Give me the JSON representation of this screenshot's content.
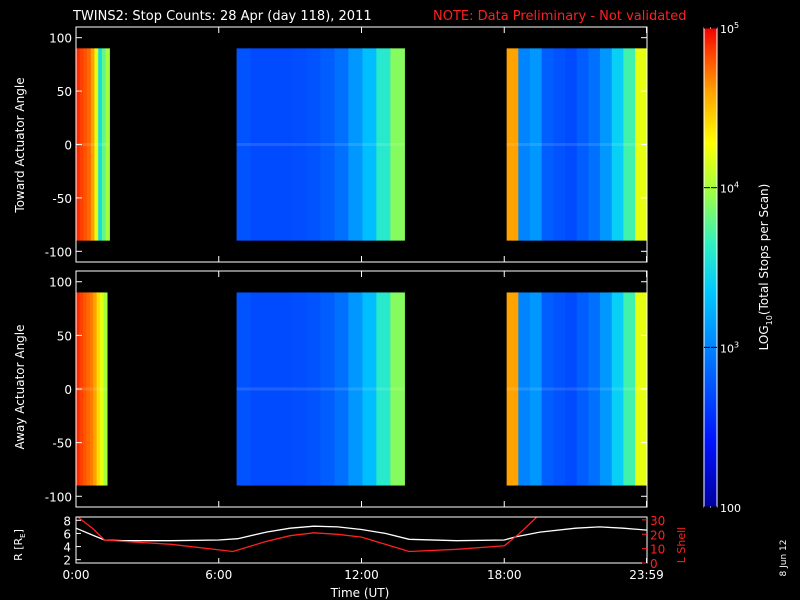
{
  "title": {
    "main": "TWINS2: Stop Counts: 28 Apr (day 118), 2011",
    "note": "NOTE: Data Preliminary - Not validated"
  },
  "date_stamp": "8 Jun 12",
  "colors": {
    "background": "#000000",
    "axes": "#ffffff",
    "note": "#ff2020",
    "r_line": "#ffffff",
    "lshell_line": "#ff2020"
  },
  "chart_data": [
    {
      "type": "heatmap",
      "name": "toward-panel",
      "ylabel": "Toward Actuator Angle",
      "ylim": [
        -110,
        110
      ],
      "yticks": [
        "100",
        "50",
        "0",
        "-50",
        "-100"
      ],
      "ytick_values": [
        100,
        50,
        0,
        -50,
        -100
      ],
      "xlim_hours": [
        0,
        24
      ],
      "data_ylim": [
        -90,
        90
      ],
      "segments": [
        {
          "start": 0.0,
          "end": 1.4,
          "profile": [
            4.9,
            4.85,
            4.8,
            4.75,
            4.6,
            4.2,
            3.5,
            3.8,
            4.0
          ]
        },
        {
          "start": 6.75,
          "end": 13.8,
          "profile": [
            2.75,
            2.7,
            2.7,
            2.7,
            2.72,
            2.75,
            2.8,
            2.9,
            3.1,
            3.3,
            3.6,
            3.9
          ]
        },
        {
          "start": 18.1,
          "end": 23.99,
          "profile": [
            4.6,
            3.0,
            3.1,
            2.8,
            2.75,
            2.7,
            2.8,
            2.9,
            3.1,
            3.4,
            3.7,
            4.2
          ]
        }
      ]
    },
    {
      "type": "heatmap",
      "name": "away-panel",
      "ylabel": "Away Actuator Angle",
      "ylim": [
        -110,
        110
      ],
      "yticks": [
        "100",
        "50",
        "0",
        "-50",
        "-100"
      ],
      "ytick_values": [
        100,
        50,
        0,
        -50,
        -100
      ],
      "xlim_hours": [
        0,
        24
      ],
      "data_ylim": [
        -90,
        90
      ],
      "segments": [
        {
          "start": 0.0,
          "end": 1.3,
          "profile": [
            4.9,
            4.85,
            4.8,
            4.75,
            4.7,
            4.6,
            4.4,
            4.2,
            4.0
          ]
        },
        {
          "start": 6.75,
          "end": 13.8,
          "profile": [
            2.75,
            2.7,
            2.7,
            2.7,
            2.72,
            2.75,
            2.8,
            2.9,
            3.1,
            3.3,
            3.6,
            3.9
          ]
        },
        {
          "start": 18.1,
          "end": 23.99,
          "profile": [
            4.6,
            3.0,
            3.1,
            2.8,
            2.75,
            2.7,
            2.8,
            2.9,
            3.1,
            3.4,
            3.7,
            4.2
          ]
        }
      ]
    },
    {
      "type": "line",
      "name": "orbit-panel",
      "xlabel": "Time (UT)",
      "xticks": [
        "0:00",
        "6:00",
        "12:00",
        "18:00",
        "23:59"
      ],
      "xtick_values": [
        0,
        6,
        12,
        18,
        23.98
      ],
      "ylabel": "R [R",
      "ylabel_sub": "E",
      "ylabel_close": "]",
      "yticks": [
        "8",
        "6",
        "4",
        "2"
      ],
      "ytick_values": [
        8,
        6,
        4,
        2
      ],
      "ylim": [
        1.5,
        8.5
      ],
      "y2label": "L Shell",
      "y2ticks": [
        "30",
        "20",
        "10",
        "0"
      ],
      "y2tick_values": [
        30,
        20,
        10,
        0
      ],
      "y2lim": [
        0,
        32
      ],
      "series": [
        {
          "axis": "left",
          "x": [
            0,
            0.8,
            1.2,
            2,
            4,
            6,
            6.8,
            8,
            9,
            10,
            11,
            12,
            13,
            14,
            16,
            18,
            18.5,
            19.5,
            21,
            22,
            23,
            24
          ],
          "y": [
            6.8,
            5.6,
            5.0,
            4.9,
            4.9,
            5.0,
            5.2,
            6.2,
            6.8,
            7.1,
            7.0,
            6.6,
            6.0,
            5.1,
            4.9,
            5.0,
            5.5,
            6.2,
            6.8,
            7.0,
            6.8,
            6.5
          ]
        },
        {
          "axis": "right",
          "x": [
            0,
            0.7,
            1.2,
            2,
            4,
            6.6,
            8,
            9,
            10,
            11,
            12,
            13,
            14,
            16,
            18,
            18.6,
            19.5
          ],
          "y": [
            33,
            24,
            16,
            15,
            13,
            8,
            15,
            19,
            21,
            20,
            18,
            13,
            8,
            9.5,
            12,
            20,
            34
          ]
        }
      ]
    }
  ],
  "colorbar": {
    "label_pre": "LOG",
    "label_sub": "10",
    "label_post": "(Total Stops per Scan)",
    "log_range": [
      2,
      5
    ],
    "ticks": [
      {
        "value": 5,
        "base": "10",
        "exp": "5"
      },
      {
        "value": 4,
        "base": "10",
        "exp": "4"
      },
      {
        "value": 3,
        "base": "10",
        "exp": "3"
      },
      {
        "value": 2,
        "base": "100",
        "exp": ""
      }
    ]
  }
}
